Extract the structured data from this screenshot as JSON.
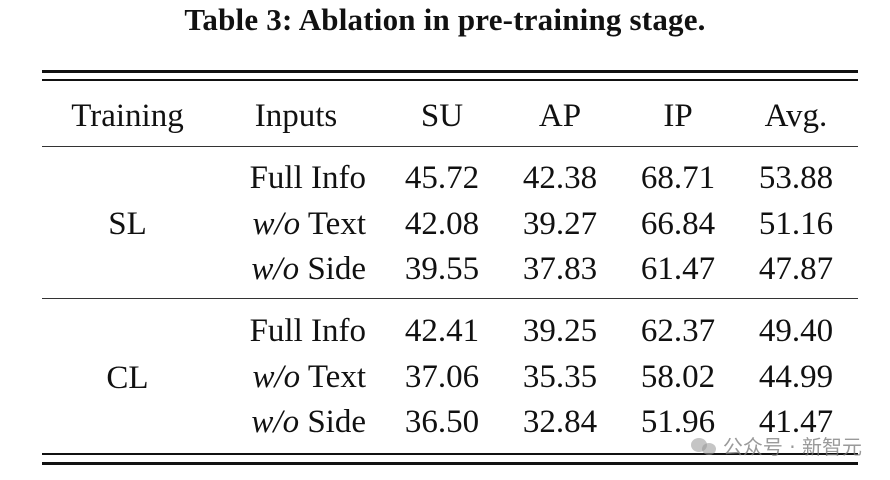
{
  "caption": "Table 3: Ablation in pre-training stage.",
  "headers": {
    "training": "Training",
    "inputs": "Inputs",
    "su": "SU",
    "ap": "AP",
    "ip": "IP",
    "avg": "Avg."
  },
  "groups": [
    {
      "training": "SL",
      "rows": [
        {
          "input_prefix": "",
          "input_main": "Full Info",
          "su": "45.72",
          "ap": "42.38",
          "ip": "68.71",
          "avg": "53.88"
        },
        {
          "input_prefix": "w/o",
          "input_main": " Text",
          "su": "42.08",
          "ap": "39.27",
          "ip": "66.84",
          "avg": "51.16"
        },
        {
          "input_prefix": "w/o",
          "input_main": " Side",
          "su": "39.55",
          "ap": "37.83",
          "ip": "61.47",
          "avg": "47.87"
        }
      ]
    },
    {
      "training": "CL",
      "rows": [
        {
          "input_prefix": "",
          "input_main": "Full Info",
          "su": "42.41",
          "ap": "39.25",
          "ip": "62.37",
          "avg": "49.40"
        },
        {
          "input_prefix": "w/o",
          "input_main": " Text",
          "su": "37.06",
          "ap": "35.35",
          "ip": "58.02",
          "avg": "44.99"
        },
        {
          "input_prefix": "w/o",
          "input_main": " Side",
          "su": "36.50",
          "ap": "32.84",
          "ip": "51.96",
          "avg": "41.47"
        }
      ]
    }
  ],
  "watermark": "公众号 · 新智元"
}
